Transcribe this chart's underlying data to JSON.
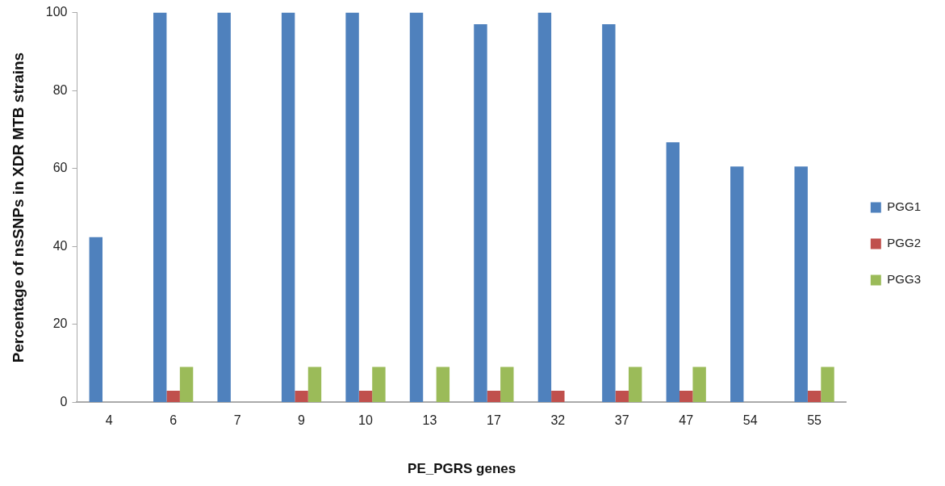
{
  "chart_data": {
    "type": "bar",
    "xlabel": "PE_PGRS genes",
    "ylabel": "Percentage of nsSNPs in XDR MTB strains",
    "categories": [
      "4",
      "6",
      "7",
      "9",
      "10",
      "13",
      "17",
      "32",
      "37",
      "47",
      "54",
      "55"
    ],
    "series": [
      {
        "name": "PGG1",
        "color": "#4f81bd",
        "values": [
          42.4,
          100,
          100,
          100,
          100,
          100,
          97,
          100,
          97,
          66.7,
          60.5,
          60.5
        ]
      },
      {
        "name": "PGG2",
        "color": "#c0504d",
        "values": [
          null,
          3,
          null,
          3,
          3,
          null,
          3,
          3,
          3,
          3,
          null,
          3
        ]
      },
      {
        "name": "PGG3",
        "color": "#9bbb59",
        "values": [
          null,
          9.1,
          null,
          9.1,
          9.1,
          9.1,
          9.1,
          null,
          9.1,
          9.1,
          null,
          9.1
        ]
      }
    ],
    "ylim": [
      0,
      100
    ],
    "yticks": [
      0,
      20,
      40,
      60,
      80,
      100
    ],
    "grid": false,
    "legend": "right"
  }
}
